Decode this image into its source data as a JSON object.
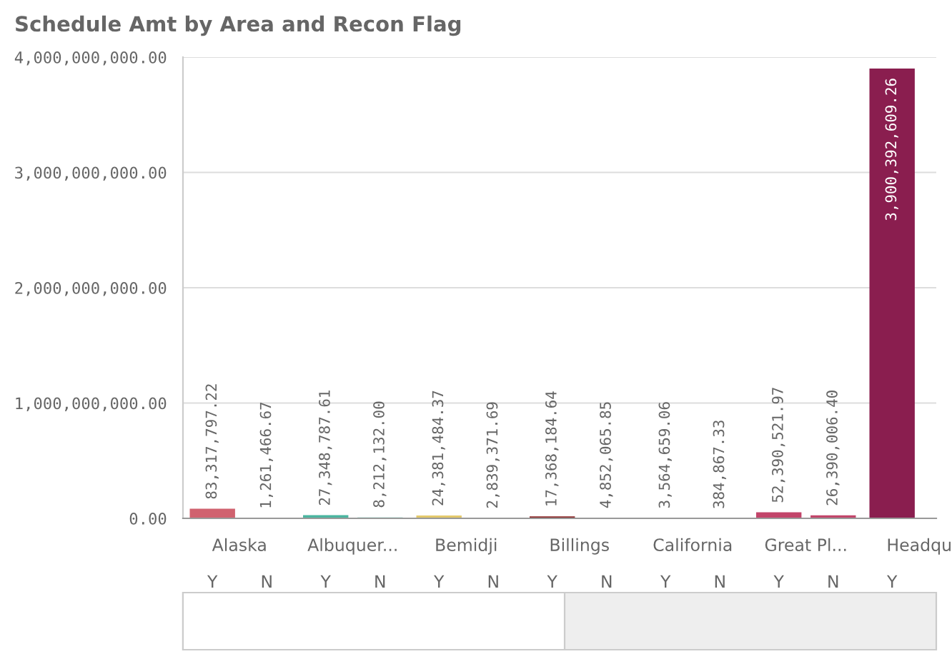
{
  "chart_data": {
    "type": "bar",
    "title": "Schedule Amt by Area and Recon Flag",
    "categories": [
      "Alaska",
      "Albuquer...",
      "Bemidji",
      "Billings",
      "California",
      "Great Pl...",
      "Headqu"
    ],
    "series": [
      {
        "name": "Y",
        "colors": [
          "#d0626f",
          "#4bb5a0",
          "#e3c96b",
          "#8b2a2a",
          "#5b8fd4",
          "#c2456a",
          "#8a1e4f"
        ],
        "values": [
          83317797.22,
          27348787.61,
          24381484.37,
          17368184.64,
          3564659.06,
          52390521.97,
          3900392609.26
        ],
        "value_labels": [
          "83,317,797.22",
          "27,348,787.61",
          "24,381,484.37",
          "17,368,184.64",
          "3,564,659.06",
          "52,390,521.97",
          "3,900,392,609.26"
        ]
      },
      {
        "name": "N",
        "colors": [
          "#d0626f",
          "#4bb5a0",
          "#e3c96b",
          "#8b2a2a",
          "#5b8fd4",
          "#c2456a",
          "#8a1e4f"
        ],
        "values": [
          1261466.67,
          8212132.0,
          2839371.69,
          4852065.85,
          384867.33,
          26390006.4,
          null
        ],
        "value_labels": [
          "1,261,466.67",
          "8,212,132.00",
          "2,839,371.69",
          "4,852,065.85",
          "384,867.33",
          "26,390,006.40",
          null
        ]
      }
    ],
    "ylim": [
      0,
      4000000000
    ],
    "yticks": [
      {
        "value": 0,
        "label": "0.00"
      },
      {
        "value": 1000000000,
        "label": "1,000,000,000.00"
      },
      {
        "value": 2000000000,
        "label": "2,000,000,000.00"
      },
      {
        "value": 3000000000,
        "label": "3,000,000,000.00"
      },
      {
        "value": 4000000000,
        "label": "4,000,000,000.00"
      }
    ],
    "grid": "y",
    "legend": false
  }
}
